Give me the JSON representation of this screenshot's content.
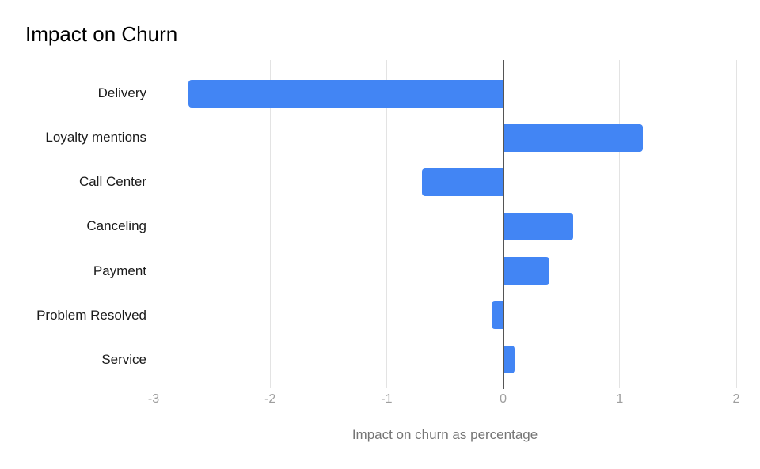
{
  "title": "Impact on Churn",
  "chart_data": {
    "type": "bar",
    "orientation": "horizontal",
    "title": "Impact on Churn",
    "categories": [
      "Delivery",
      "Loyalty mentions",
      "Call Center",
      "Canceling",
      "Payment",
      "Problem Resolved",
      "Service"
    ],
    "values": [
      -2.7,
      1.2,
      -0.7,
      0.6,
      0.4,
      -0.1,
      0.1
    ],
    "xlabel": "Impact on churn as percentage",
    "ylabel": "",
    "xlim": [
      -3,
      2
    ],
    "xticks": [
      -3,
      -2,
      -1,
      0,
      1,
      2
    ],
    "xtick_labels": [
      "-3",
      "-2",
      "-1",
      "0",
      "1",
      "2"
    ],
    "grid": true,
    "legend": false,
    "colors": {
      "bar": "#4285f4",
      "gridline": "#e3e3e3",
      "zero_line": "#555555",
      "tick_label": "#9e9e9e",
      "category_label": "#1a1a1a",
      "axis_title": "#757575",
      "title": "#000000",
      "background": "#ffffff"
    }
  }
}
